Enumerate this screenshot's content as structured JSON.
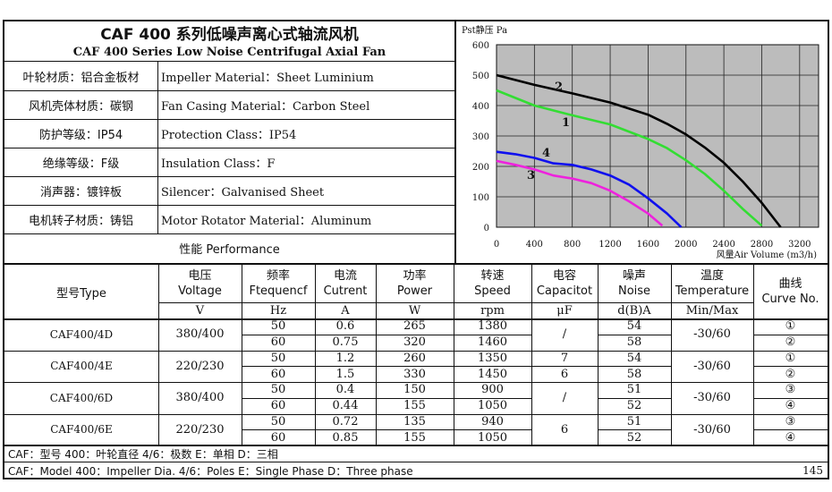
{
  "header": {
    "title_cn": "CAF 400 系列低噪声离心式轴流风机",
    "title_en": "CAF 400 Series Low Noise Centrifugal Axial Fan"
  },
  "specs": [
    {
      "cn": "叶轮材质：铝合金板材",
      "en": "Impeller Material：Sheet Luminium"
    },
    {
      "cn": "风机壳体材质：碳钢",
      "en": "Fan Casing Material：Carbon Steel"
    },
    {
      "cn": "防护等级：IP54",
      "en": "Protection Class：IP54"
    },
    {
      "cn": "绝缘等级：F级",
      "en": "Insulation Class：F"
    },
    {
      "cn": "消声器：镀锌板",
      "en": "Silencer：Galvanised Sheet"
    },
    {
      "cn": "电机转子材质：铸铝",
      "en": "Motor Rotator Material：Aluminum"
    }
  ],
  "performance_label": "性能  Performance",
  "table": {
    "headers": [
      {
        "cn": "型号Type"
      },
      {
        "cn": "电压",
        "en": "Voltage",
        "unit": "V"
      },
      {
        "cn": "频率",
        "en": "Ftequencf",
        "unit": "Hz"
      },
      {
        "cn": "电流",
        "en": "Cutrent",
        "unit": "A"
      },
      {
        "cn": "功率",
        "en": "Power",
        "unit": "W"
      },
      {
        "cn": "转速",
        "en": "Speed",
        "unit": "rpm"
      },
      {
        "cn": "电容",
        "en": "Capacitot",
        "unit": "μF"
      },
      {
        "cn": "噪声",
        "en": "Noise",
        "unit": "d(B)A"
      },
      {
        "cn": "温度",
        "en": "Temperature",
        "unit": "Min/Max"
      },
      {
        "cn": "曲线",
        "en": "Curve No."
      }
    ],
    "models": [
      {
        "type": "CAF400/4D",
        "voltage": "380/400",
        "temperature": "-30/60",
        "capacitor": [
          "/"
        ],
        "rows": [
          {
            "freq": "50",
            "current": "0.6",
            "power": "265",
            "speed": "1380",
            "noise": "54",
            "curve": "①"
          },
          {
            "freq": "60",
            "current": "0.75",
            "power": "320",
            "speed": "1460",
            "noise": "58",
            "curve": "②"
          }
        ]
      },
      {
        "type": "CAF400/4E",
        "voltage": "220/230",
        "temperature": "-30/60",
        "capacitor": [
          "7",
          "6"
        ],
        "rows": [
          {
            "freq": "50",
            "current": "1.2",
            "power": "260",
            "speed": "1350",
            "noise": "54",
            "curve": "①"
          },
          {
            "freq": "60",
            "current": "1.5",
            "power": "330",
            "speed": "1450",
            "noise": "58",
            "curve": "②"
          }
        ]
      },
      {
        "type": "CAF400/6D",
        "voltage": "380/400",
        "temperature": "-30/60",
        "capacitor": [
          "/"
        ],
        "rows": [
          {
            "freq": "50",
            "current": "0.4",
            "power": "150",
            "speed": "900",
            "noise": "51",
            "curve": "③"
          },
          {
            "freq": "60",
            "current": "0.44",
            "power": "155",
            "speed": "1050",
            "noise": "52",
            "curve": "④"
          }
        ]
      },
      {
        "type": "CAF400/6E",
        "voltage": "220/230",
        "temperature": "-30/60",
        "capacitor": [
          "6"
        ],
        "rows": [
          {
            "freq": "50",
            "current": "0.72",
            "power": "135",
            "speed": "940",
            "noise": "51",
            "curve": "③"
          },
          {
            "freq": "60",
            "current": "0.85",
            "power": "155",
            "speed": "1050",
            "noise": "52",
            "curve": "④"
          }
        ]
      }
    ]
  },
  "footer": {
    "line_cn": "CAF：型号    400：叶轮直径    4/6：极数      E：单相       D：三相",
    "line_en": "CAF：Model   400：Impeller Dia.  4/6：Poles    E：Single Phase   D：Three phase",
    "page_number": "145"
  },
  "chart_data": {
    "type": "line",
    "ylabel": "Pst静压 Pa",
    "xlabel": "风量Air Volume (m3/h)",
    "xlim": [
      0,
      3400
    ],
    "ylim": [
      0,
      600
    ],
    "x_ticks": [
      0,
      400,
      800,
      1200,
      1600,
      2000,
      2400,
      2800,
      3200
    ],
    "y_ticks": [
      0,
      100,
      200,
      300,
      400,
      500,
      600
    ],
    "grid": true,
    "background": "#bcbcbc",
    "series": [
      {
        "name": "2",
        "color": "#000000",
        "x": [
          0,
          400,
          800,
          1200,
          1600,
          1800,
          2000,
          2200,
          2400,
          2600,
          2800,
          3000
        ],
        "y": [
          500,
          468,
          440,
          410,
          370,
          340,
          305,
          262,
          212,
          150,
          80,
          0
        ]
      },
      {
        "name": "1",
        "color": "#33dd33",
        "x": [
          0,
          400,
          800,
          1200,
          1600,
          1800,
          2000,
          2200,
          2400,
          2600,
          2800
        ],
        "y": [
          450,
          400,
          368,
          338,
          290,
          260,
          220,
          175,
          120,
          60,
          5
        ]
      },
      {
        "name": "4",
        "color": "#1010ee",
        "x": [
          0,
          200,
          400,
          600,
          800,
          1000,
          1200,
          1400,
          1600,
          1800,
          1950
        ],
        "y": [
          248,
          240,
          228,
          210,
          205,
          190,
          170,
          140,
          95,
          45,
          0
        ]
      },
      {
        "name": "3",
        "color": "#ee22dd",
        "x": [
          0,
          200,
          400,
          600,
          800,
          1000,
          1200,
          1400,
          1600,
          1750
        ],
        "y": [
          218,
          205,
          190,
          170,
          160,
          145,
          120,
          85,
          45,
          5
        ]
      }
    ]
  }
}
